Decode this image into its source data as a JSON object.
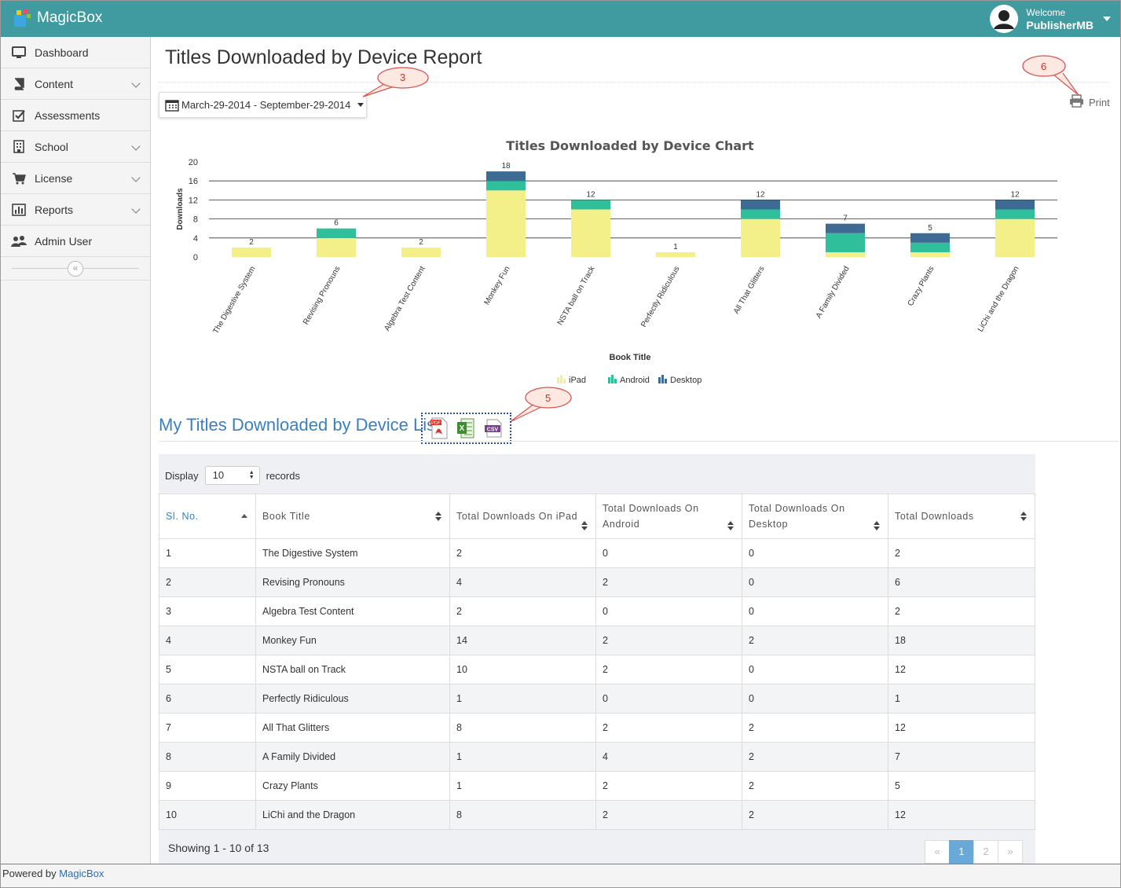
{
  "app": {
    "name": "MagicBox"
  },
  "user": {
    "welcome": "Welcome",
    "name": "PublisherMB"
  },
  "sidebar": {
    "items": [
      {
        "label": "Dashboard",
        "icon": "monitor-icon",
        "expandable": false
      },
      {
        "label": "Content",
        "icon": "book-icon",
        "expandable": true
      },
      {
        "label": "Assessments",
        "icon": "checkbox-icon",
        "expandable": false
      },
      {
        "label": "School",
        "icon": "building-icon",
        "expandable": true
      },
      {
        "label": "License",
        "icon": "cart-icon",
        "expandable": true
      },
      {
        "label": "Reports",
        "icon": "bar-chart-icon",
        "expandable": true
      },
      {
        "label": "Admin User",
        "icon": "users-icon",
        "expandable": false
      }
    ],
    "collapse_glyph": "«"
  },
  "page": {
    "title": "Titles Downloaded by Device Report"
  },
  "date_range": {
    "value": "March-29-2014 - September-29-2014"
  },
  "print": {
    "label": "Print"
  },
  "callouts": {
    "date": "3",
    "export": "5",
    "print": "6"
  },
  "chart_data": {
    "type": "bar",
    "stacked": true,
    "title": "Titles Downloaded by Device Chart",
    "xlabel": "Book Title",
    "ylabel": "Downloads",
    "ylim": [
      0,
      20
    ],
    "yticks": [
      0,
      4,
      8,
      12,
      16,
      20
    ],
    "categories": [
      "The Digestive System",
      "Revising Pronouns",
      "Algebra Test Content",
      "Monkey Fun",
      "NSTA ball on Track",
      "Perfectly Ridiculous",
      "All That Glitters",
      "A Family Divided",
      "Crazy Plants",
      "LiChi and the Dragon"
    ],
    "series": [
      {
        "name": "iPad",
        "color": "#f3f08a",
        "values": [
          2,
          4,
          2,
          14,
          10,
          1,
          8,
          1,
          1,
          8
        ]
      },
      {
        "name": "Android",
        "color": "#2fbf9a",
        "values": [
          0,
          2,
          0,
          2,
          2,
          0,
          2,
          4,
          2,
          2
        ]
      },
      {
        "name": "Desktop",
        "color": "#3e6b93",
        "values": [
          0,
          0,
          0,
          2,
          0,
          0,
          2,
          2,
          2,
          2
        ]
      }
    ],
    "totals": [
      2,
      6,
      2,
      18,
      12,
      1,
      12,
      7,
      5,
      12
    ],
    "legend_position": "bottom"
  },
  "list": {
    "title": "My Titles Downloaded by Device List",
    "export_labels": [
      "PDF",
      "X",
      "CSV"
    ]
  },
  "table": {
    "display_label": "Display",
    "display_value": "10",
    "records_label": "records",
    "columns": [
      "Sl. No.",
      "Book Title",
      "Total Downloads On iPad",
      "Total Downloads On Android",
      "Total Downloads On Desktop",
      "Total Downloads"
    ],
    "rows": [
      [
        "1",
        "The Digestive System",
        "2",
        "0",
        "0",
        "2"
      ],
      [
        "2",
        "Revising Pronouns",
        "4",
        "2",
        "0",
        "6"
      ],
      [
        "3",
        "Algebra Test Content",
        "2",
        "0",
        "0",
        "2"
      ],
      [
        "4",
        "Monkey Fun",
        "14",
        "2",
        "2",
        "18"
      ],
      [
        "5",
        "NSTA ball on Track",
        "10",
        "2",
        "0",
        "12"
      ],
      [
        "6",
        "Perfectly Ridiculous",
        "1",
        "0",
        "0",
        "1"
      ],
      [
        "7",
        "All That Glitters",
        "8",
        "2",
        "2",
        "12"
      ],
      [
        "8",
        "A Family Divided",
        "1",
        "4",
        "2",
        "7"
      ],
      [
        "9",
        "Crazy Plants",
        "1",
        "2",
        "2",
        "5"
      ],
      [
        "10",
        "LiChi and the Dragon",
        "8",
        "2",
        "2",
        "12"
      ]
    ],
    "showing": "Showing 1 - 10 of 13",
    "pager": [
      "«",
      "1",
      "2",
      "»"
    ],
    "current_page": "1"
  },
  "footer": {
    "prefix": "Powered by",
    "link": "MagicBox"
  },
  "colors": {
    "topbar": "#3f9ba0",
    "accent": "#3a7fc1",
    "callout": "#c0392b"
  }
}
